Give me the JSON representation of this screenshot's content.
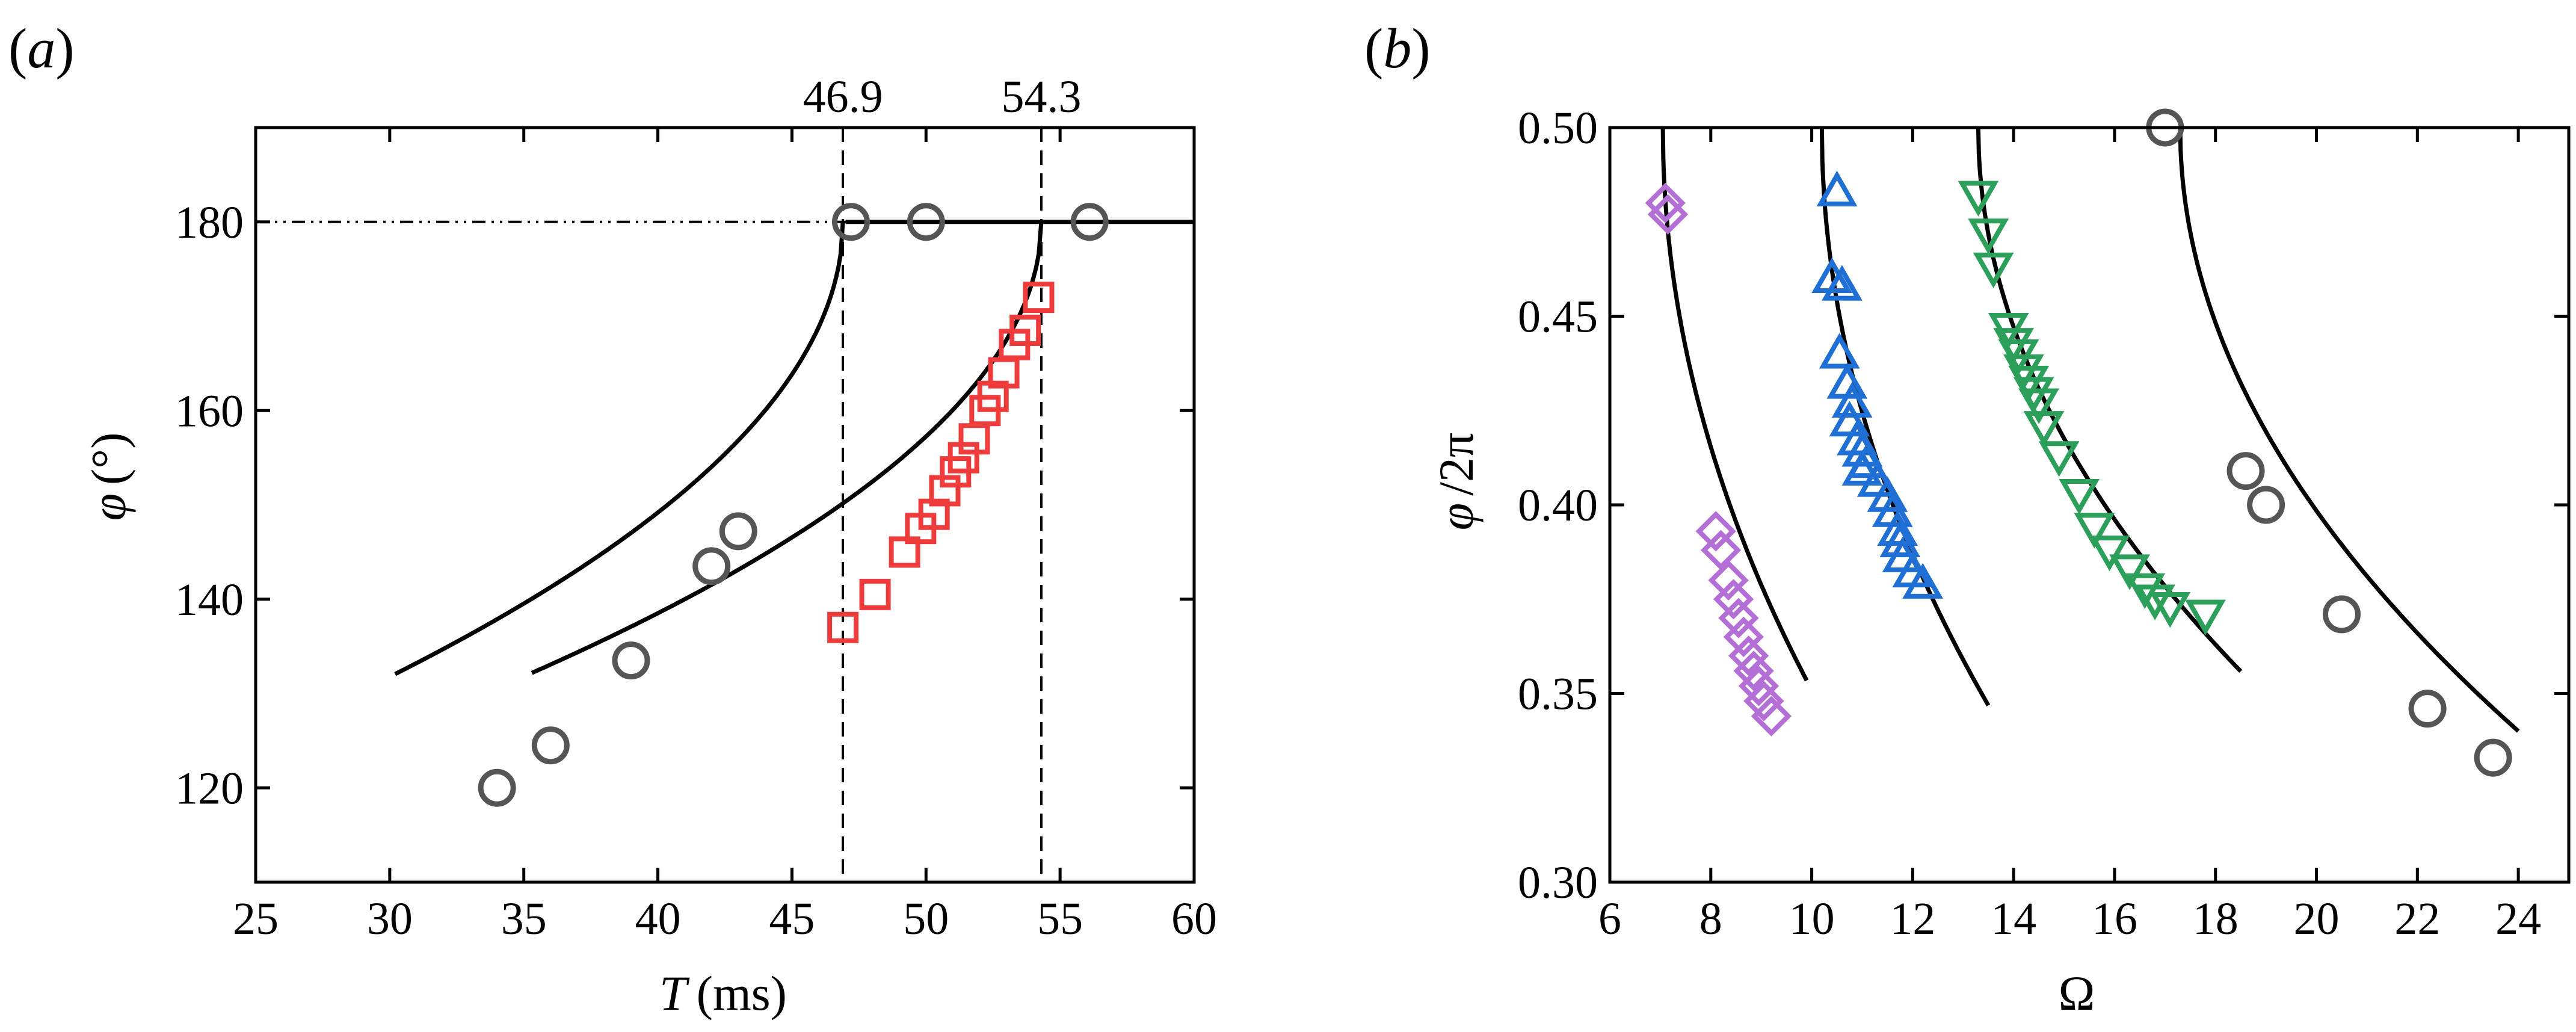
{
  "panel_a": {
    "panel_label_open": "(",
    "panel_label_letter": "a",
    "panel_label_close": ")",
    "ylabel_symbol": "φ",
    "ylabel_unit": "(°)",
    "xlabel_symbol": "T",
    "xlabel_unit": "(ms)"
  },
  "panel_b": {
    "panel_label_open": "(",
    "panel_label_letter": "b",
    "panel_label_close": ")",
    "ylabel_symbol": "φ",
    "ylabel_unit": "/2π",
    "xlabel": "Ω"
  },
  "colors": {
    "circle": "#555555",
    "square": "#ee3b3b",
    "diamond": "#b36fd6",
    "triangle_up": "#1f6fd4",
    "triangle_down": "#2ca05a",
    "curve": "#000000"
  },
  "chart_data": [
    {
      "id": "a",
      "type": "scatter",
      "xlabel": "T (ms)",
      "ylabel": "φ (°)",
      "xlim": [
        25,
        60
      ],
      "ylim": [
        110,
        190
      ],
      "xticks": [
        25,
        30,
        35,
        40,
        45,
        50,
        55,
        60
      ],
      "yticks": [
        120,
        140,
        160,
        180
      ],
      "top_ticks": [
        46.9,
        54.3
      ],
      "vlines": [
        46.9,
        54.3
      ],
      "hline": {
        "y": 180,
        "from": 25,
        "to": 47.2
      },
      "series": [
        {
          "name": "circles",
          "marker": "circle",
          "x": [
            34,
            36,
            39,
            42,
            43,
            47.2,
            50,
            56.1
          ],
          "y": [
            120,
            124.5,
            133.5,
            143.5,
            147.2,
            180,
            180,
            180
          ]
        },
        {
          "name": "squares",
          "marker": "square",
          "x": [
            46.9,
            48.1,
            49.2,
            49.8,
            50.3,
            50.7,
            51.1,
            51.4,
            51.8,
            52.2,
            52.5,
            52.9,
            53.3,
            53.7,
            54.2
          ],
          "y": [
            137,
            140.5,
            145,
            147.5,
            149,
            151.5,
            153.5,
            155,
            157,
            160,
            161.5,
            164,
            167,
            168.5,
            172
          ]
        }
      ],
      "curves": [
        {
          "name": "fit-1",
          "Tc": 46.9,
          "A": 11.73,
          "T0": 30.2,
          "T1": 46.9
        },
        {
          "name": "fit-2",
          "Tc": 54.3,
          "A": 10.97,
          "T0": 35.3,
          "T1": 54.3
        },
        {
          "name": "plateau",
          "x": [
            47.0,
            60
          ],
          "y": [
            180,
            180
          ]
        }
      ]
    },
    {
      "id": "b",
      "type": "scatter",
      "xlabel": "Ω",
      "ylabel": "φ/2π",
      "xlim": [
        6,
        25
      ],
      "ylim": [
        0.3,
        0.5
      ],
      "xticks": [
        6,
        8,
        10,
        12,
        14,
        16,
        18,
        20,
        22,
        24
      ],
      "yticks": [
        0.3,
        0.35,
        0.4,
        0.45,
        0.5
      ],
      "ytick_labels": [
        "0.30",
        "0.35",
        "0.40",
        "0.45",
        "0.50"
      ],
      "series": [
        {
          "name": "diamonds",
          "marker": "diamond",
          "x": [
            7.1,
            7.15,
            8.1,
            8.2,
            8.35,
            8.45,
            8.55,
            8.65,
            8.75,
            8.85,
            8.95,
            9.05,
            9.2
          ],
          "y": [
            0.48,
            0.477,
            0.393,
            0.388,
            0.38,
            0.375,
            0.37,
            0.365,
            0.36,
            0.356,
            0.352,
            0.348,
            0.344
          ]
        },
        {
          "name": "up-triangles",
          "marker": "triangle-up",
          "x": [
            10.5,
            10.4,
            10.6,
            10.55,
            10.7,
            10.8,
            10.75,
            10.9,
            11.0,
            11.1,
            11.0,
            11.3,
            11.5,
            11.6,
            11.7,
            11.75,
            11.8,
            12.0,
            12.2
          ],
          "y": [
            0.483,
            0.46,
            0.458,
            0.44,
            0.432,
            0.427,
            0.422,
            0.417,
            0.414,
            0.411,
            0.409,
            0.406,
            0.402,
            0.398,
            0.393,
            0.39,
            0.386,
            0.382,
            0.379
          ]
        },
        {
          "name": "down-triangles",
          "marker": "triangle-down",
          "x": [
            13.3,
            13.5,
            13.6,
            13.9,
            14.0,
            14.1,
            14.2,
            14.3,
            14.4,
            14.5,
            14.6,
            14.9,
            15.3,
            15.6,
            15.9,
            16.3,
            16.6,
            16.8,
            17.1,
            17.8
          ],
          "y": [
            0.482,
            0.472,
            0.463,
            0.447,
            0.443,
            0.44,
            0.436,
            0.433,
            0.43,
            0.427,
            0.421,
            0.413,
            0.403,
            0.394,
            0.388,
            0.383,
            0.378,
            0.375,
            0.373,
            0.371
          ]
        },
        {
          "name": "circles",
          "marker": "circle",
          "x": [
            17.0,
            18.6,
            19.0,
            20.5,
            22.2,
            23.5
          ],
          "y": [
            0.5,
            0.409,
            0.4,
            0.371,
            0.346,
            0.333
          ]
        }
      ],
      "curves": [
        {
          "name": "branch-1",
          "Wc": 7.05,
          "A": 0.0868,
          "W0": 7.06,
          "W1": 9.9
        },
        {
          "name": "branch-2",
          "Wc": 10.2,
          "A": 0.0843,
          "W0": 10.21,
          "W1": 13.5
        },
        {
          "name": "branch-3",
          "Wc": 13.3,
          "A": 0.0632,
          "W0": 13.31,
          "W1": 18.5
        },
        {
          "name": "branch-4",
          "Wc": 17.3,
          "A": 0.0618,
          "W0": 17.31,
          "W1": 24.0
        }
      ]
    }
  ]
}
